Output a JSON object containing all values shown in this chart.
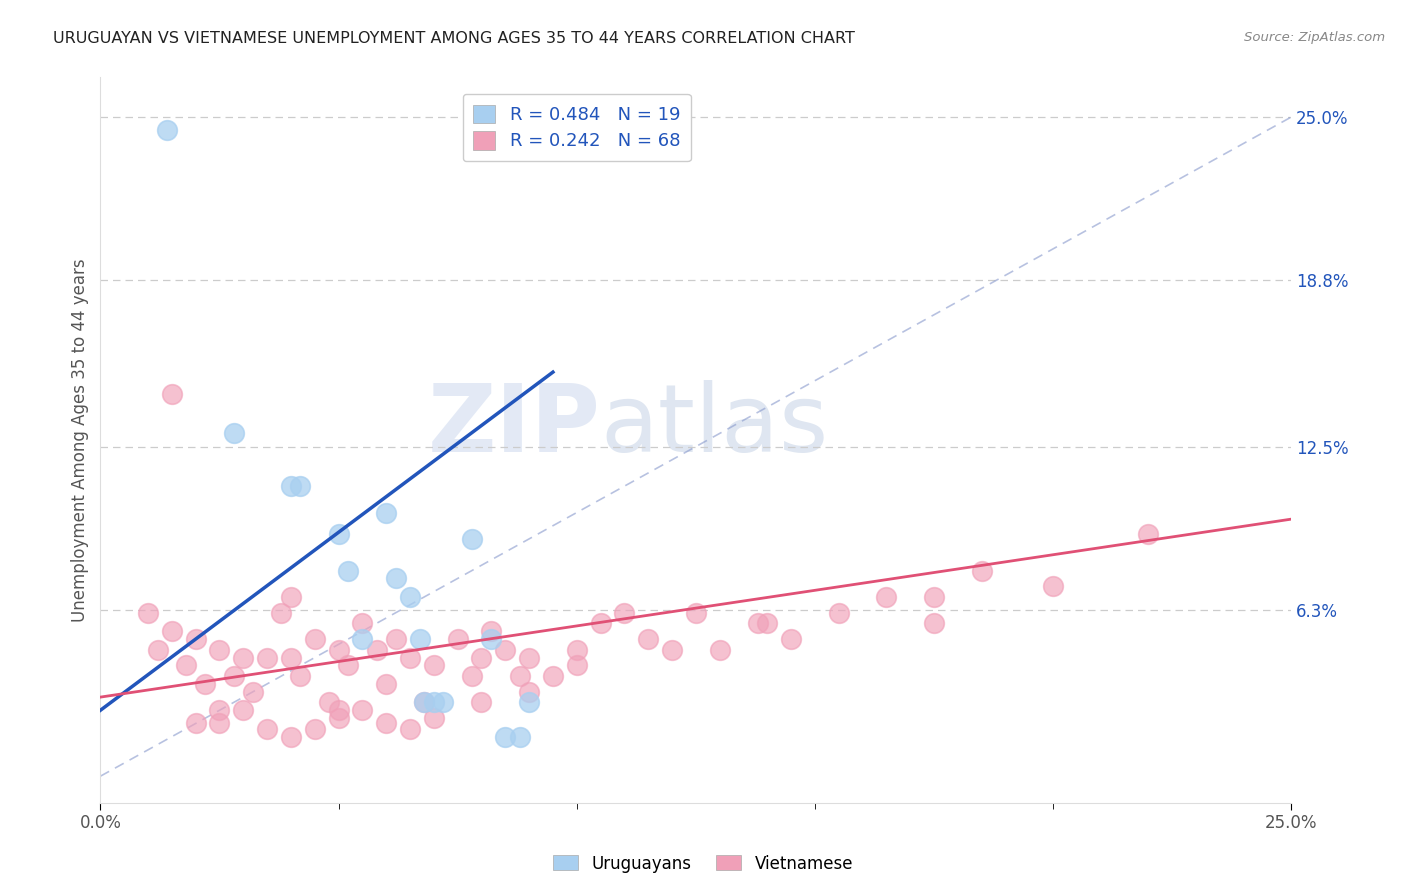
{
  "title": "URUGUAYAN VS VIETNAMESE UNEMPLOYMENT AMONG AGES 35 TO 44 YEARS CORRELATION CHART",
  "source": "Source: ZipAtlas.com",
  "ylabel": "Unemployment Among Ages 35 to 44 years",
  "xlim": [
    0.0,
    0.25
  ],
  "ylim": [
    -0.01,
    0.265
  ],
  "ytick_labels_right": [
    "6.3%",
    "12.5%",
    "18.8%",
    "25.0%"
  ],
  "ytick_positions_right": [
    0.063,
    0.125,
    0.188,
    0.25
  ],
  "legend_uruguayan": "R = 0.484   N = 19",
  "legend_vietnamese": "R = 0.242   N = 68",
  "color_uruguayan": "#a8cff0",
  "color_vietnamese": "#f0a0b8",
  "color_line_uruguayan": "#2255bb",
  "color_line_vietnamese": "#e05075",
  "watermark_zip": "ZIP",
  "watermark_atlas": "atlas",
  "uruguayan_x": [
    0.014,
    0.028,
    0.04,
    0.042,
    0.05,
    0.052,
    0.055,
    0.06,
    0.062,
    0.065,
    0.067,
    0.068,
    0.07,
    0.072,
    0.078,
    0.082,
    0.085,
    0.088,
    0.09
  ],
  "uruguayan_y": [
    0.245,
    0.13,
    0.11,
    0.11,
    0.092,
    0.078,
    0.052,
    0.1,
    0.075,
    0.068,
    0.052,
    0.028,
    0.028,
    0.028,
    0.09,
    0.052,
    0.015,
    0.015,
    0.028
  ],
  "vietnamese_x": [
    0.01,
    0.012,
    0.015,
    0.018,
    0.02,
    0.022,
    0.025,
    0.025,
    0.028,
    0.03,
    0.032,
    0.035,
    0.038,
    0.04,
    0.04,
    0.042,
    0.045,
    0.048,
    0.05,
    0.05,
    0.052,
    0.055,
    0.058,
    0.06,
    0.062,
    0.065,
    0.068,
    0.07,
    0.075,
    0.078,
    0.08,
    0.082,
    0.085,
    0.088,
    0.09,
    0.095,
    0.1,
    0.105,
    0.11,
    0.115,
    0.12,
    0.125,
    0.13,
    0.138,
    0.145,
    0.155,
    0.165,
    0.175,
    0.185,
    0.2,
    0.015,
    0.02,
    0.025,
    0.03,
    0.035,
    0.04,
    0.045,
    0.05,
    0.055,
    0.06,
    0.065,
    0.07,
    0.08,
    0.09,
    0.1,
    0.14,
    0.175,
    0.22
  ],
  "vietnamese_y": [
    0.062,
    0.048,
    0.055,
    0.042,
    0.052,
    0.035,
    0.048,
    0.025,
    0.038,
    0.045,
    0.032,
    0.045,
    0.062,
    0.068,
    0.045,
    0.038,
    0.052,
    0.028,
    0.048,
    0.022,
    0.042,
    0.058,
    0.048,
    0.035,
    0.052,
    0.045,
    0.028,
    0.042,
    0.052,
    0.038,
    0.045,
    0.055,
    0.048,
    0.038,
    0.045,
    0.038,
    0.048,
    0.058,
    0.062,
    0.052,
    0.048,
    0.062,
    0.048,
    0.058,
    0.052,
    0.062,
    0.068,
    0.058,
    0.078,
    0.072,
    0.145,
    0.02,
    0.02,
    0.025,
    0.018,
    0.015,
    0.018,
    0.025,
    0.025,
    0.02,
    0.018,
    0.022,
    0.028,
    0.032,
    0.042,
    0.058,
    0.068,
    0.092
  ],
  "uru_line_x": [
    0.0,
    0.095
  ],
  "uru_line_y_start": 0.025,
  "uru_line_slope": 1.35,
  "viet_line_x": [
    0.0,
    0.25
  ],
  "viet_line_y_start": 0.03,
  "viet_line_slope": 0.27,
  "background_color": "#ffffff",
  "grid_color": "#cccccc"
}
